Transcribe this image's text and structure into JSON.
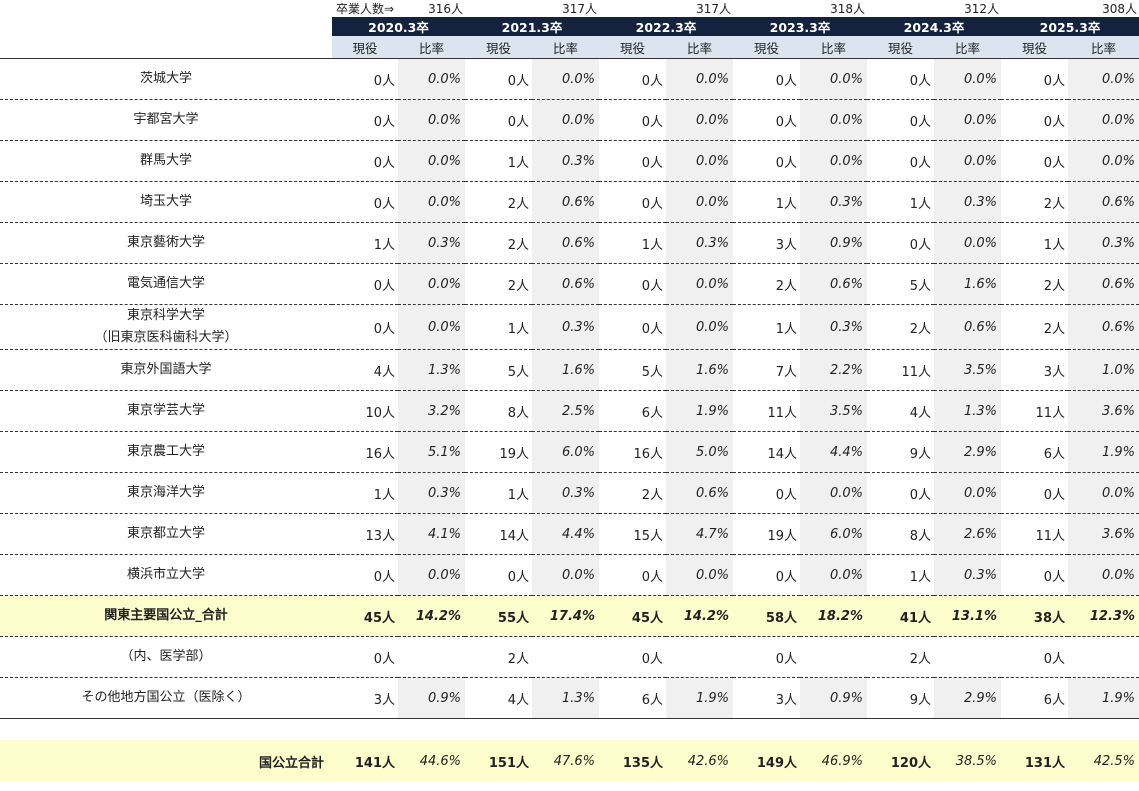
{
  "header": {
    "grad_label": "卒業人数⇒",
    "grads": [
      "316人",
      "317人",
      "317人",
      "318人",
      "312人",
      "308人"
    ],
    "years": [
      "2020.3卒",
      "2021.3卒",
      "2022.3卒",
      "2023.3卒",
      "2024.3卒",
      "2025.3卒"
    ],
    "sub_count": "現役",
    "sub_rate": "比率"
  },
  "rows": [
    {
      "name": "茨城大学",
      "cells": [
        [
          "0人",
          "0.0%"
        ],
        [
          "0人",
          "0.0%"
        ],
        [
          "0人",
          "0.0%"
        ],
        [
          "0人",
          "0.0%"
        ],
        [
          "0人",
          "0.0%"
        ],
        [
          "0人",
          "0.0%"
        ]
      ]
    },
    {
      "name": "宇都宮大学",
      "cells": [
        [
          "0人",
          "0.0%"
        ],
        [
          "0人",
          "0.0%"
        ],
        [
          "0人",
          "0.0%"
        ],
        [
          "0人",
          "0.0%"
        ],
        [
          "0人",
          "0.0%"
        ],
        [
          "0人",
          "0.0%"
        ]
      ]
    },
    {
      "name": "群馬大学",
      "cells": [
        [
          "0人",
          "0.0%"
        ],
        [
          "1人",
          "0.3%"
        ],
        [
          "0人",
          "0.0%"
        ],
        [
          "0人",
          "0.0%"
        ],
        [
          "0人",
          "0.0%"
        ],
        [
          "0人",
          "0.0%"
        ]
      ]
    },
    {
      "name": "埼玉大学",
      "cells": [
        [
          "0人",
          "0.0%"
        ],
        [
          "2人",
          "0.6%"
        ],
        [
          "0人",
          "0.0%"
        ],
        [
          "1人",
          "0.3%"
        ],
        [
          "1人",
          "0.3%"
        ],
        [
          "2人",
          "0.6%"
        ]
      ]
    },
    {
      "name": "東京藝術大学",
      "cells": [
        [
          "1人",
          "0.3%"
        ],
        [
          "2人",
          "0.6%"
        ],
        [
          "1人",
          "0.3%"
        ],
        [
          "3人",
          "0.9%"
        ],
        [
          "0人",
          "0.0%"
        ],
        [
          "1人",
          "0.3%"
        ]
      ]
    },
    {
      "name": "電気通信大学",
      "cells": [
        [
          "0人",
          "0.0%"
        ],
        [
          "2人",
          "0.6%"
        ],
        [
          "0人",
          "0.0%"
        ],
        [
          "2人",
          "0.6%"
        ],
        [
          "5人",
          "1.6%"
        ],
        [
          "2人",
          "0.6%"
        ]
      ]
    },
    {
      "name": "東京科学大学",
      "name2": "（旧東京医科歯科大学）",
      "cells": [
        [
          "0人",
          "0.0%"
        ],
        [
          "1人",
          "0.3%"
        ],
        [
          "0人",
          "0.0%"
        ],
        [
          "1人",
          "0.3%"
        ],
        [
          "2人",
          "0.6%"
        ],
        [
          "2人",
          "0.6%"
        ]
      ]
    },
    {
      "name": "東京外国語大学",
      "cells": [
        [
          "4人",
          "1.3%"
        ],
        [
          "5人",
          "1.6%"
        ],
        [
          "5人",
          "1.6%"
        ],
        [
          "7人",
          "2.2%"
        ],
        [
          "11人",
          "3.5%"
        ],
        [
          "3人",
          "1.0%"
        ]
      ]
    },
    {
      "name": "東京学芸大学",
      "cells": [
        [
          "10人",
          "3.2%"
        ],
        [
          "8人",
          "2.5%"
        ],
        [
          "6人",
          "1.9%"
        ],
        [
          "11人",
          "3.5%"
        ],
        [
          "4人",
          "1.3%"
        ],
        [
          "11人",
          "3.6%"
        ]
      ]
    },
    {
      "name": "東京農工大学",
      "cells": [
        [
          "16人",
          "5.1%"
        ],
        [
          "19人",
          "6.0%"
        ],
        [
          "16人",
          "5.0%"
        ],
        [
          "14人",
          "4.4%"
        ],
        [
          "9人",
          "2.9%"
        ],
        [
          "6人",
          "1.9%"
        ]
      ]
    },
    {
      "name": "東京海洋大学",
      "cells": [
        [
          "1人",
          "0.3%"
        ],
        [
          "1人",
          "0.3%"
        ],
        [
          "2人",
          "0.6%"
        ],
        [
          "0人",
          "0.0%"
        ],
        [
          "0人",
          "0.0%"
        ],
        [
          "0人",
          "0.0%"
        ]
      ]
    },
    {
      "name": "東京都立大学",
      "cells": [
        [
          "13人",
          "4.1%"
        ],
        [
          "14人",
          "4.4%"
        ],
        [
          "15人",
          "4.7%"
        ],
        [
          "19人",
          "6.0%"
        ],
        [
          "8人",
          "2.6%"
        ],
        [
          "11人",
          "3.6%"
        ]
      ]
    },
    {
      "name": "横浜市立大学",
      "cells": [
        [
          "0人",
          "0.0%"
        ],
        [
          "0人",
          "0.0%"
        ],
        [
          "0人",
          "0.0%"
        ],
        [
          "0人",
          "0.0%"
        ],
        [
          "1人",
          "0.3%"
        ],
        [
          "0人",
          "0.0%"
        ]
      ]
    }
  ],
  "subtotal": {
    "name": "関東主要国公立_合計",
    "cells": [
      [
        "45人",
        "14.2%"
      ],
      [
        "55人",
        "17.4%"
      ],
      [
        "45人",
        "14.2%"
      ],
      [
        "58人",
        "18.2%"
      ],
      [
        "41人",
        "13.1%"
      ],
      [
        "38人",
        "12.3%"
      ]
    ]
  },
  "medical": {
    "name": "（内、医学部）",
    "cells": [
      [
        "0人",
        ""
      ],
      [
        "2人",
        ""
      ],
      [
        "0人",
        ""
      ],
      [
        "0人",
        ""
      ],
      [
        "2人",
        ""
      ],
      [
        "0人",
        ""
      ]
    ]
  },
  "other": {
    "name": "その他地方国公立（医除く）",
    "cells": [
      [
        "3人",
        "0.9%"
      ],
      [
        "4人",
        "1.3%"
      ],
      [
        "6人",
        "1.9%"
      ],
      [
        "3人",
        "0.9%"
      ],
      [
        "9人",
        "2.9%"
      ],
      [
        "6人",
        "1.9%"
      ]
    ]
  },
  "total": {
    "name": "国公立合計",
    "cells": [
      [
        "141人",
        "44.6%"
      ],
      [
        "151人",
        "47.6%"
      ],
      [
        "135人",
        "42.6%"
      ],
      [
        "149人",
        "46.9%"
      ],
      [
        "120人",
        "38.5%"
      ],
      [
        "131人",
        "42.5%"
      ]
    ]
  }
}
